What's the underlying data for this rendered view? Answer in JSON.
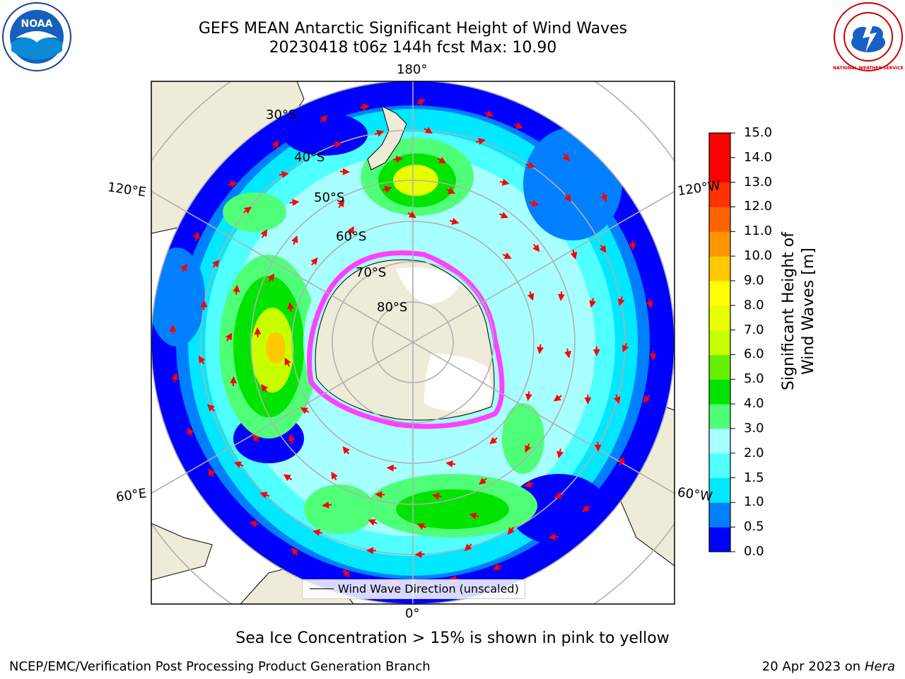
{
  "header": {
    "title_line1": "GEFS MEAN Antarctic Significant Height of Wind Waves",
    "title_line2": "20230418 t06z 144h fcst   Max: 10.90"
  },
  "logos": {
    "left": {
      "text": "NOAA",
      "icon": "noaa-logo"
    },
    "right": {
      "text": "NATIONAL WEATHER SERVICE",
      "icon": "nws-logo"
    }
  },
  "map": {
    "longitude_labels": [
      "180°",
      "120°E",
      "120°W",
      "60°E",
      "60°W",
      "0°"
    ],
    "latitude_labels": [
      "30°S",
      "40°S",
      "50°S",
      "60°S",
      "70°S",
      "80°S"
    ],
    "legend_text": "Wind Wave Direction (unscaled)",
    "arrow_color": "#ff0000",
    "land_color": "#efebd9"
  },
  "colorbar": {
    "label": "Significant Height of Wind Waves [m]",
    "ticks": [
      "0.0",
      "0.5",
      "1.0",
      "1.5",
      "2.0",
      "3.0",
      "4.0",
      "5.0",
      "6.0",
      "7.0",
      "8.0",
      "9.0",
      "10.0",
      "11.0",
      "12.0",
      "13.0",
      "14.0",
      "15.0"
    ],
    "colors": [
      "#0000ff",
      "#0080ff",
      "#00e8ff",
      "#50ffff",
      "#a8ffff",
      "#50ff78",
      "#00e400",
      "#64f000",
      "#c8ff00",
      "#e8ff00",
      "#ffff00",
      "#ffc800",
      "#ff9600",
      "#ff6400",
      "#ff3200",
      "#ff0000",
      "#ff0000"
    ]
  },
  "footer": {
    "note": "Sea Ice Concentration > 15% is shown in pink to yellow",
    "left": "NCEP/EMC/Verification Post Processing Product Generation Branch",
    "right_prefix": "20 Apr 2023 on ",
    "right_emph": "Hera"
  }
}
